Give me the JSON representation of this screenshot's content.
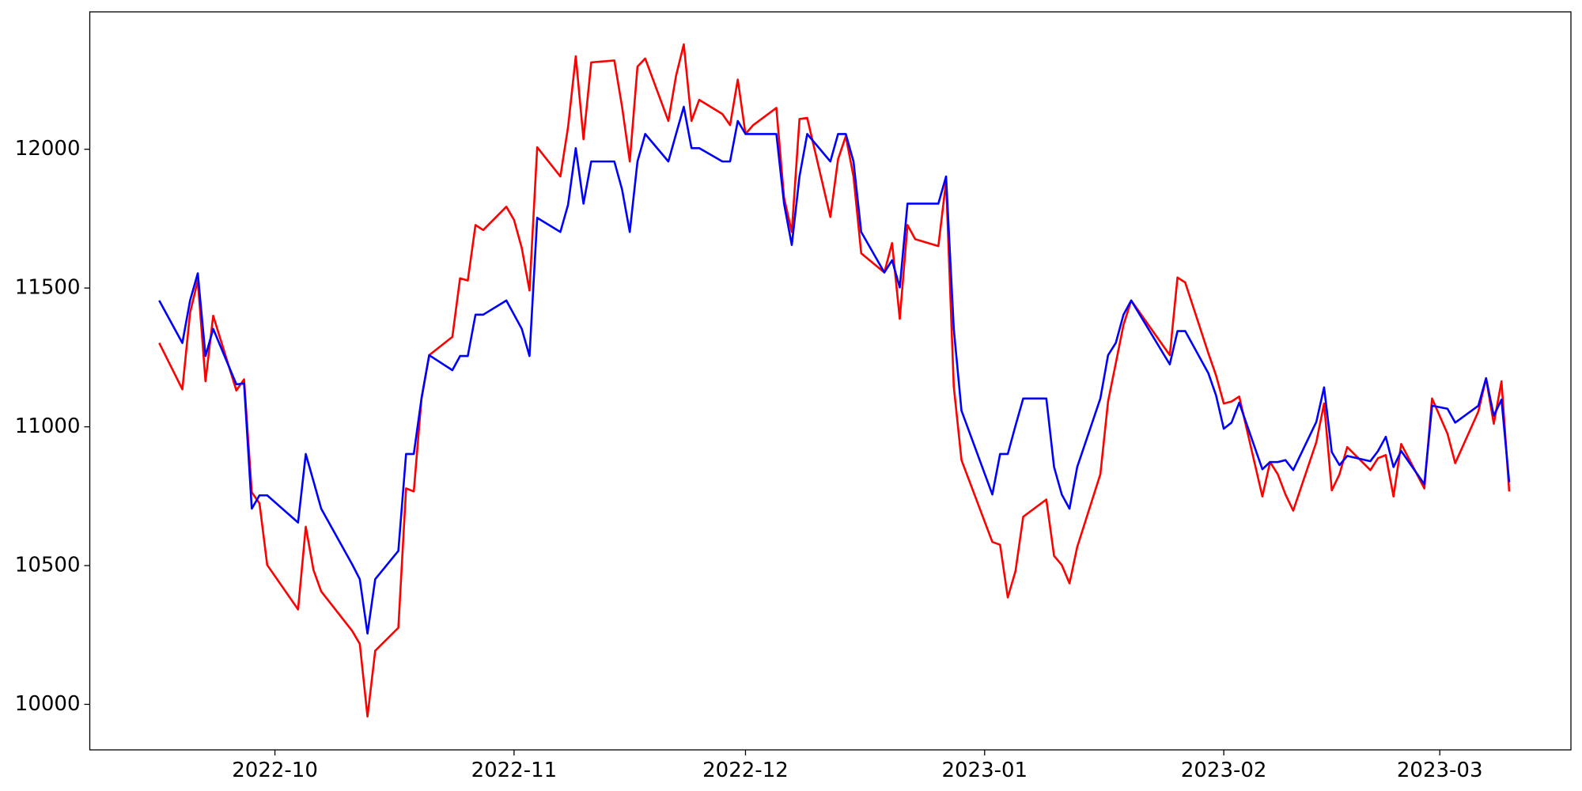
{
  "chart_data": {
    "type": "line",
    "x": [
      "2022-09-16",
      "2022-09-19",
      "2022-09-20",
      "2022-09-21",
      "2022-09-22",
      "2022-09-23",
      "2022-09-26",
      "2022-09-27",
      "2022-09-28",
      "2022-09-29",
      "2022-09-30",
      "2022-10-04",
      "2022-10-05",
      "2022-10-06",
      "2022-10-07",
      "2022-10-11",
      "2022-10-12",
      "2022-10-13",
      "2022-10-14",
      "2022-10-17",
      "2022-10-18",
      "2022-10-19",
      "2022-10-20",
      "2022-10-21",
      "2022-10-24",
      "2022-10-25",
      "2022-10-26",
      "2022-10-27",
      "2022-10-28",
      "2022-10-31",
      "2022-11-01",
      "2022-11-02",
      "2022-11-03",
      "2022-11-04",
      "2022-11-07",
      "2022-11-08",
      "2022-11-09",
      "2022-11-10",
      "2022-11-11",
      "2022-11-14",
      "2022-11-15",
      "2022-11-16",
      "2022-11-17",
      "2022-11-18",
      "2022-11-21",
      "2022-11-22",
      "2022-11-23",
      "2022-11-24",
      "2022-11-25",
      "2022-11-28",
      "2022-11-29",
      "2022-11-30",
      "2022-12-01",
      "2022-12-02",
      "2022-12-05",
      "2022-12-06",
      "2022-12-07",
      "2022-12-08",
      "2022-12-09",
      "2022-12-12",
      "2022-12-13",
      "2022-12-14",
      "2022-12-15",
      "2022-12-16",
      "2022-12-19",
      "2022-12-20",
      "2022-12-21",
      "2022-12-22",
      "2022-12-23",
      "2022-12-26",
      "2022-12-27",
      "2022-12-28",
      "2022-12-29",
      "2023-01-02",
      "2023-01-03",
      "2023-01-04",
      "2023-01-05",
      "2023-01-06",
      "2023-01-09",
      "2023-01-10",
      "2023-01-11",
      "2023-01-12",
      "2023-01-13",
      "2023-01-16",
      "2023-01-17",
      "2023-01-18",
      "2023-01-19",
      "2023-01-20",
      "2023-01-25",
      "2023-01-26",
      "2023-01-27",
      "2023-01-30",
      "2023-01-31",
      "2023-02-01",
      "2023-02-02",
      "2023-02-03",
      "2023-02-06",
      "2023-02-07",
      "2023-02-08",
      "2023-02-09",
      "2023-02-10",
      "2023-02-13",
      "2023-02-14",
      "2023-02-15",
      "2023-02-16",
      "2023-02-17",
      "2023-02-20",
      "2023-02-21",
      "2023-02-22",
      "2023-02-23",
      "2023-02-24",
      "2023-02-27",
      "2023-02-28",
      "2023-03-02",
      "2023-03-03",
      "2023-03-06",
      "2023-03-07",
      "2023-03-08",
      "2023-03-09",
      "2023-03-10"
    ],
    "series": [
      {
        "color": "#ff0000",
        "values": [
          11302,
          11135,
          11411,
          11527,
          11164,
          11400,
          11131,
          11171,
          10764,
          10724,
          10502,
          10342,
          10640,
          10484,
          10407,
          10265,
          10218,
          9956,
          10193,
          10276,
          10778,
          10767,
          11102,
          11258,
          11324,
          11535,
          11527,
          11727,
          11709,
          11793,
          11745,
          11644,
          11491,
          12007,
          11902,
          12080,
          12335,
          12036,
          12313,
          12320,
          12153,
          11956,
          12298,
          12327,
          12102,
          12265,
          12378,
          12102,
          12178,
          12127,
          12087,
          12251,
          12055,
          12087,
          12149,
          11825,
          11702,
          12109,
          12113,
          11756,
          11964,
          12047,
          11902,
          11625,
          11556,
          11662,
          11389,
          11727,
          11676,
          11651,
          11884,
          11145,
          10880,
          10585,
          10575,
          10385,
          10480,
          10676,
          10738,
          10535,
          10502,
          10436,
          10567,
          10829,
          11091,
          11229,
          11367,
          11455,
          11258,
          11538,
          11520,
          11265,
          11185,
          11084,
          11091,
          11109,
          10749,
          10873,
          10829,
          10756,
          10698,
          10945,
          11084,
          10771,
          10829,
          10927,
          10844,
          10887,
          10898,
          10749,
          10938,
          10778,
          11102,
          10975,
          10869,
          11055,
          11175,
          11011,
          11164,
          10767
        ]
      },
      {
        "color": "#0000ff",
        "values": [
          11455,
          11302,
          11455,
          11553,
          11255,
          11353,
          11153,
          11156,
          10705,
          10753,
          10753,
          10655,
          10902,
          10804,
          10705,
          10505,
          10451,
          10255,
          10451,
          10553,
          10902,
          10902,
          11102,
          11258,
          11204,
          11255,
          11255,
          11404,
          11404,
          11455,
          11404,
          11353,
          11255,
          11753,
          11702,
          11800,
          12004,
          11804,
          11956,
          11956,
          11855,
          11702,
          11956,
          12055,
          11956,
          12055,
          12153,
          12004,
          12004,
          11956,
          11956,
          12102,
          12055,
          12055,
          12055,
          11804,
          11655,
          11902,
          12055,
          11956,
          12055,
          12055,
          11956,
          11702,
          11556,
          11600,
          11502,
          11804,
          11804,
          11804,
          11902,
          11353,
          11058,
          10756,
          10902,
          10902,
          11004,
          11102,
          11102,
          10855,
          10756,
          10705,
          10855,
          11102,
          11258,
          11302,
          11404,
          11455,
          11225,
          11345,
          11345,
          11193,
          11113,
          10993,
          11015,
          11087,
          10847,
          10873,
          10873,
          10880,
          10844,
          11018,
          11142,
          10909,
          10862,
          10895,
          10876,
          10913,
          10964,
          10855,
          10913,
          10793,
          11076,
          11065,
          11015,
          11076,
          11175,
          11040,
          11098,
          10800
        ]
      }
    ],
    "xlim": [
      "2022-09-07",
      "2023-03-18"
    ],
    "xticks": [
      {
        "value": "2022-10-01",
        "label": "2022-10"
      },
      {
        "value": "2022-11-01",
        "label": "2022-11"
      },
      {
        "value": "2022-12-01",
        "label": "2022-12"
      },
      {
        "value": "2023-01-01",
        "label": "2023-01"
      },
      {
        "value": "2023-02-01",
        "label": "2023-02"
      },
      {
        "value": "2023-03-01",
        "label": "2023-03"
      }
    ],
    "ylim": [
      9836,
      12495
    ],
    "yticks": [
      10000,
      10500,
      11000,
      11500,
      12000
    ],
    "grid": false
  }
}
